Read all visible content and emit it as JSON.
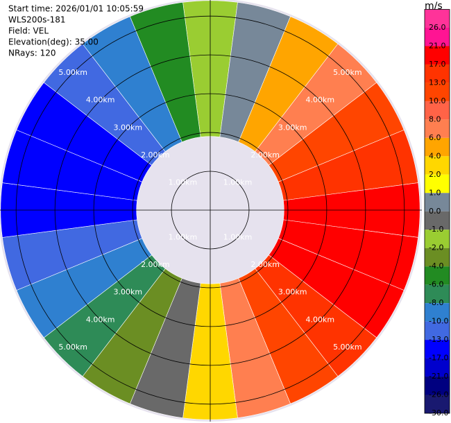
{
  "chart_data": {
    "type": "ppi",
    "header": [
      "Start time: 2026/01/01 10:05:59",
      "WLS200s-181",
      "Field: VEL",
      "Elevation(deg): 35.00",
      "NRays: 120"
    ],
    "unit": "m/s",
    "range_rings": [
      {
        "value": 1,
        "label": "1.00km"
      },
      {
        "value": 2,
        "label": "2.00km"
      },
      {
        "value": 3,
        "label": "3.00km"
      },
      {
        "value": 4,
        "label": "4.00km"
      },
      {
        "value": 5,
        "label": "5.00km"
      }
    ],
    "rlim": [
      0,
      5.45
    ],
    "azimuths": [
      0,
      15,
      30,
      45,
      60,
      75,
      90,
      105,
      120,
      135,
      150,
      165,
      180,
      195,
      210,
      225,
      240,
      255,
      270,
      285,
      300,
      315,
      330,
      345
    ],
    "values": [
      -2,
      0,
      4,
      6,
      10,
      13,
      17,
      17,
      17,
      13,
      10,
      6,
      2,
      -1,
      -4,
      -8,
      -10,
      -13,
      -17,
      -17,
      -17,
      -13,
      -10,
      -6
    ],
    "gate_range": [
      1.9,
      5.4
    ],
    "cticks": [
      {
        "value": 26,
        "label": "26.0"
      },
      {
        "value": 21,
        "label": "21.0"
      },
      {
        "value": 17,
        "label": "17.0"
      },
      {
        "value": 13,
        "label": "13.0"
      },
      {
        "value": 10,
        "label": "10.0"
      },
      {
        "value": 8,
        "label": "8.0"
      },
      {
        "value": 6,
        "label": "6.0"
      },
      {
        "value": 4,
        "label": "4.0"
      },
      {
        "value": 2,
        "label": "2.0"
      },
      {
        "value": 1,
        "label": "1.0"
      },
      {
        "value": 0,
        "label": "0.0"
      },
      {
        "value": -1,
        "label": "-1.0"
      },
      {
        "value": -2,
        "label": "-2.0"
      },
      {
        "value": -4,
        "label": "-4.0"
      },
      {
        "value": -6,
        "label": "-6.0"
      },
      {
        "value": -8,
        "label": "-8.0"
      },
      {
        "value": -10,
        "label": "-10.0"
      },
      {
        "value": -13,
        "label": "-13.0"
      },
      {
        "value": -17,
        "label": "-17.0"
      },
      {
        "value": -21,
        "label": "-21.0"
      },
      {
        "value": -26,
        "label": "-26.0"
      },
      {
        "value": -30,
        "label": "-30.0"
      }
    ],
    "colors": [
      "#ff3399",
      "#ff1493",
      "#ff0000",
      "#ff3300",
      "#ff4500",
      "#ff6347",
      "#ff7f50",
      "#ffa500",
      "#ffd700",
      "#ffff00",
      "#778899",
      "#696969",
      "#9acd32",
      "#6b8e23",
      "#228b22",
      "#2e8b57",
      "#2f80d0",
      "#4169e1",
      "#0000ff",
      "#0000cd",
      "#000080",
      "#191970"
    ]
  }
}
